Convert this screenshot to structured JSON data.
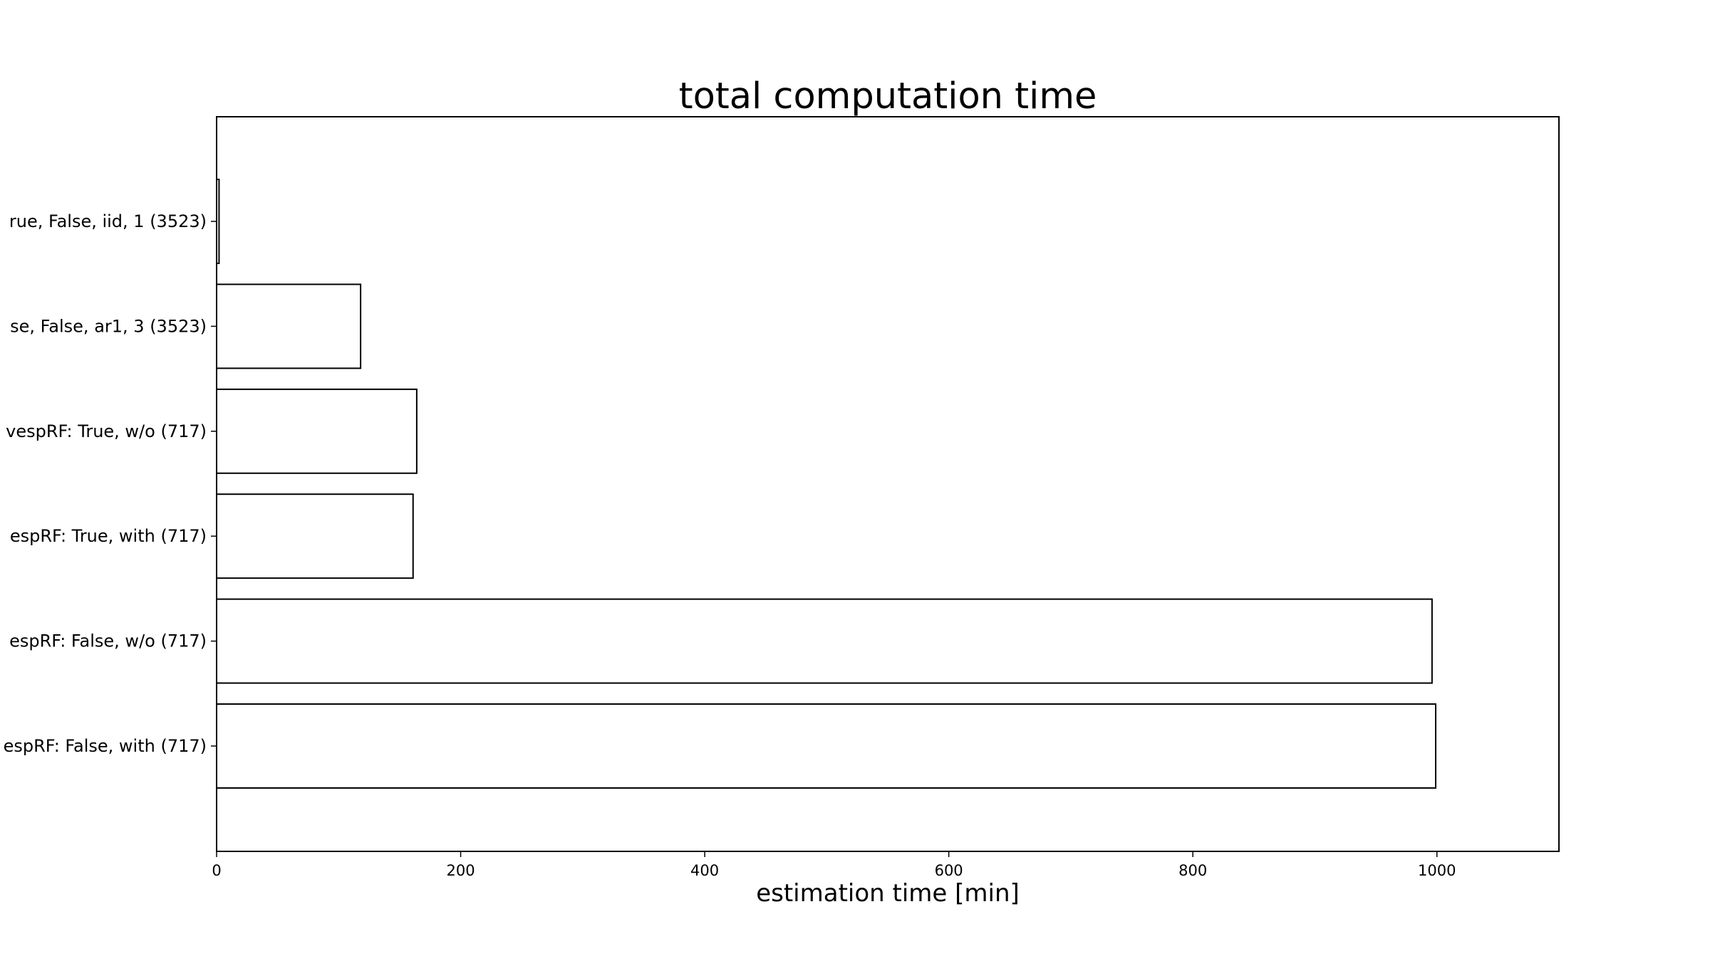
{
  "chart_data": {
    "type": "bar",
    "orientation": "horizontal",
    "title": "total computation time",
    "xlabel": "estimation time [min]",
    "ylabel": "",
    "categories": [
      "rue, False, iid, 1 (3523)",
      "se, False, ar1, 3 (3523)",
      "vespRF: True, w/o (717)",
      "espRF: True, with (717)",
      "espRF: False, w/o (717)",
      "espRF: False, with (717)"
    ],
    "values": [
      2,
      118,
      164,
      161,
      996,
      999
    ],
    "xlim": [
      0,
      1100
    ],
    "xticks": [
      "0",
      "200",
      "400",
      "600",
      "800",
      "1000"
    ],
    "grid": false,
    "colors": {
      "bar_fill": "#ffffff",
      "bar_edge": "#000000"
    }
  }
}
